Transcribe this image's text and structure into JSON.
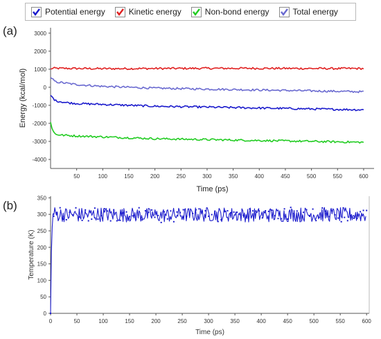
{
  "legend": [
    {
      "label": "Potential energy",
      "color": "#1a1acc"
    },
    {
      "label": "Kinetic energy",
      "color": "#e02020"
    },
    {
      "label": "Non-bond energy",
      "color": "#22cc22"
    },
    {
      "label": "Total energy",
      "color": "#6a6ad0"
    }
  ],
  "panels": {
    "a": "(a)",
    "b": "(b)"
  },
  "chart_data": [
    {
      "type": "line",
      "xlabel": "Time  (ps)",
      "ylabel": "Energy (kcal/mol)",
      "xlim": [
        0,
        620
      ],
      "ylim": [
        -4500,
        3300
      ],
      "xticks": [
        50,
        100,
        150,
        200,
        250,
        300,
        350,
        400,
        450,
        500,
        550,
        600
      ],
      "yticks": [
        3000,
        2000,
        1000,
        0,
        -1000,
        -2000,
        -3000,
        -4000
      ],
      "grid": false,
      "legend_position": "top",
      "series": [
        {
          "name": "Kinetic energy",
          "color": "#e02020",
          "x": [
            0,
            3,
            10,
            50,
            100,
            200,
            300,
            400,
            500,
            600
          ],
          "y": [
            1000,
            1050,
            1050,
            1040,
            1030,
            1040,
            1050,
            1050,
            1040,
            1040
          ]
        },
        {
          "name": "Total energy",
          "color": "#6a6ad0",
          "x": [
            0,
            3,
            10,
            50,
            100,
            150,
            200,
            300,
            400,
            500,
            600
          ],
          "y": [
            500,
            450,
            300,
            150,
            50,
            0,
            -50,
            -100,
            -150,
            -200,
            -250
          ]
        },
        {
          "name": "Potential energy",
          "color": "#1a1acc",
          "x": [
            0,
            3,
            10,
            30,
            50,
            100,
            200,
            300,
            400,
            500,
            600
          ],
          "y": [
            -450,
            -550,
            -750,
            -850,
            -900,
            -950,
            -1050,
            -1100,
            -1150,
            -1200,
            -1250
          ]
        },
        {
          "name": "Non-bond energy",
          "color": "#22cc22",
          "x": [
            0,
            3,
            6,
            10,
            20,
            50,
            100,
            200,
            300,
            400,
            500,
            600
          ],
          "y": [
            -1900,
            -2300,
            -2500,
            -2600,
            -2650,
            -2700,
            -2750,
            -2850,
            -2900,
            -2950,
            -3000,
            -3050
          ]
        }
      ]
    },
    {
      "type": "line",
      "xlabel": "Time (ps)",
      "ylabel": "Temperature (K)",
      "xlim": [
        0,
        605
      ],
      "ylim": [
        0,
        355
      ],
      "xticks": [
        0,
        50,
        100,
        150,
        200,
        250,
        300,
        350,
        400,
        450,
        500,
        550,
        600
      ],
      "yticks": [
        0,
        50,
        100,
        150,
        200,
        250,
        300,
        350
      ],
      "grid": false,
      "series": [
        {
          "name": "",
          "color": "#1a1acc",
          "x": [
            0,
            1,
            2,
            3,
            4,
            5,
            10,
            50,
            100,
            200,
            300,
            400,
            500,
            600
          ],
          "y": [
            0,
            150,
            210,
            255,
            290,
            305,
            300,
            298,
            300,
            297,
            300,
            298,
            300,
            298
          ]
        }
      ]
    }
  ]
}
